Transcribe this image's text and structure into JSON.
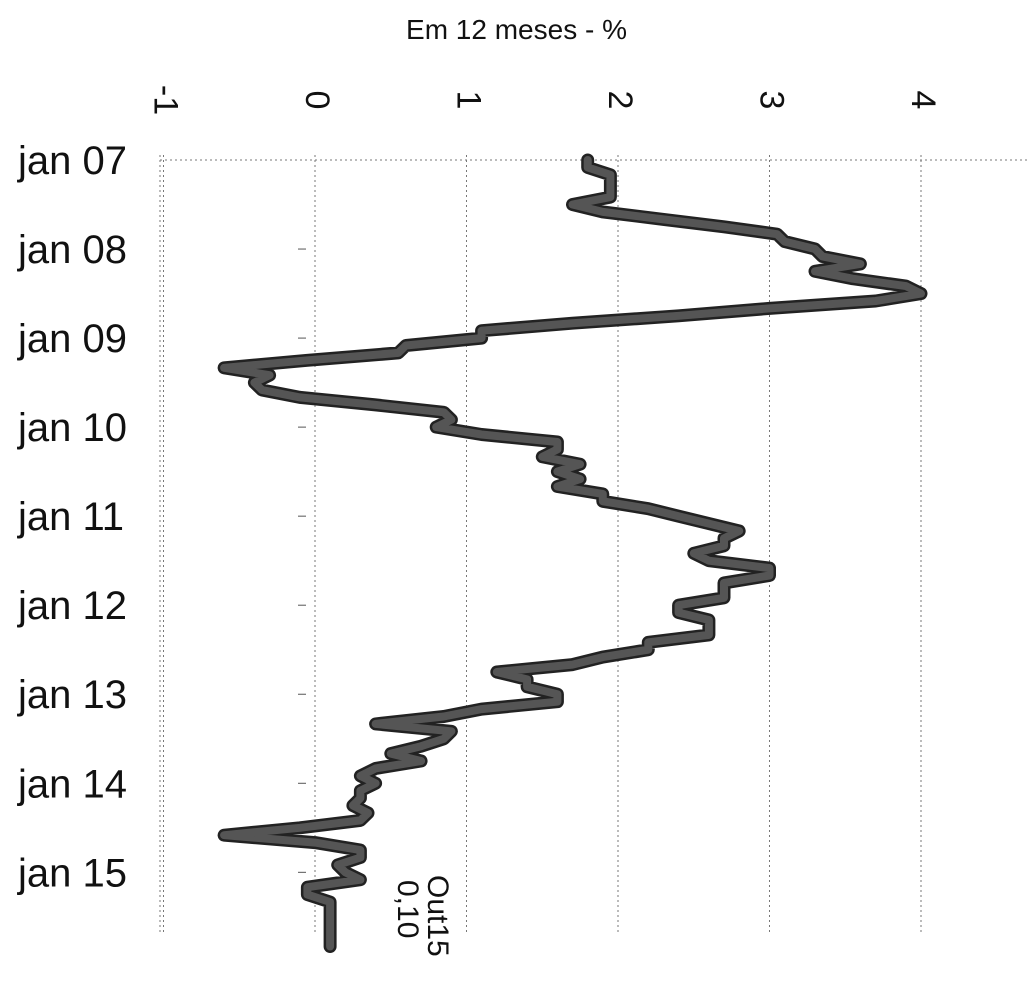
{
  "chart_data": {
    "type": "line",
    "title": "Em 12 meses - %",
    "xlabel": "",
    "ylabel": "",
    "xlim": [
      -1,
      4
    ],
    "ylim": [
      "jan 07",
      "out 15"
    ],
    "x_axis_position": "top",
    "value_ticks": [
      "-1",
      "0",
      "1",
      "2",
      "3",
      "4"
    ],
    "date_ticks": [
      "jan 07",
      "jan 08",
      "jan 09",
      "jan 10",
      "jan 11",
      "jan 12",
      "jan 13",
      "jan 14",
      "jan 15"
    ],
    "grid": true,
    "series_color": "#555555",
    "annotation": {
      "period": "Out15",
      "value": "0,10"
    },
    "series": [
      {
        "values": [
          1.8,
          1.8,
          1.95,
          1.95,
          1.95,
          1.95,
          1.7,
          1.9,
          2.3,
          2.7,
          3.05,
          3.1,
          3.3,
          3.35,
          3.6,
          3.3,
          3.55,
          3.9,
          4.0,
          3.7,
          3.0,
          2.4,
          1.7,
          1.1,
          1.1,
          0.6,
          0.55,
          -0.05,
          -0.6,
          -0.3,
          -0.4,
          -0.35,
          -0.1,
          0.4,
          0.85,
          0.9,
          0.8,
          1.1,
          1.6,
          1.6,
          1.5,
          1.75,
          1.6,
          1.75,
          1.6,
          1.9,
          1.9,
          2.2,
          2.4,
          2.6,
          2.8,
          2.7,
          2.7,
          2.5,
          2.6,
          3.0,
          3.0,
          2.7,
          2.7,
          2.7,
          2.4,
          2.4,
          2.6,
          2.6,
          2.6,
          2.2,
          2.2,
          1.9,
          1.7,
          1.2,
          1.4,
          1.4,
          1.6,
          1.6,
          1.1,
          0.85,
          0.4,
          0.9,
          0.85,
          0.7,
          0.5,
          0.7,
          0.4,
          0.3,
          0.4,
          0.3,
          0.3,
          0.25,
          0.35,
          0.3,
          -0.1,
          -0.6,
          0.0,
          0.3,
          0.3,
          0.15,
          0.2,
          0.3,
          -0.05,
          -0.05,
          0.1,
          0.1,
          0.1,
          0.1,
          0.1,
          0.1,
          0.1
        ]
      }
    ]
  }
}
